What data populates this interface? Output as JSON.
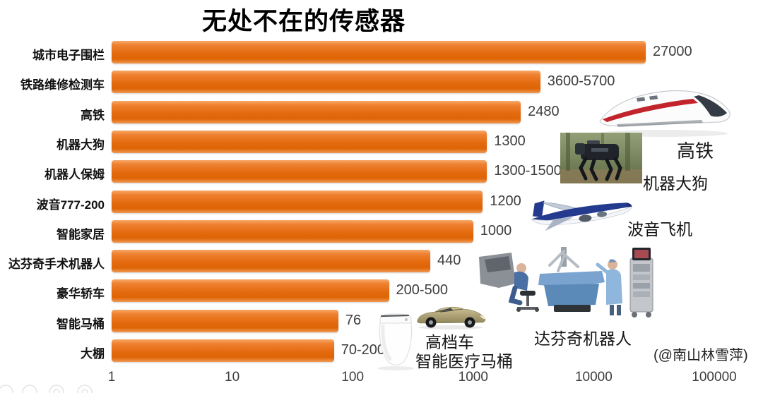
{
  "title": "无处不在的传感器",
  "attribution": "(@南山林雪萍)",
  "colors": {
    "bar_orange": "#e4690e",
    "bar_orange_light": "#f7a968",
    "text_dark": "#1a1a1a",
    "value_gray": "#3d3d3d"
  },
  "chart_data": {
    "type": "bar",
    "orientation": "horizontal",
    "title": "无处不在的传感器",
    "xlabel": "",
    "ylabel": "",
    "x_scale": "log10",
    "xlim": [
      1,
      100000
    ],
    "x_ticks": [
      "1",
      "10",
      "100",
      "1000",
      "10000",
      "100000"
    ],
    "grid": false,
    "legend": false,
    "bars": [
      {
        "category": "城市电子围栏",
        "label": "27000",
        "value": 27000
      },
      {
        "category": "铁路维修检测车",
        "label": "3600-5700",
        "value": 3600
      },
      {
        "category": "高铁",
        "label": "2480",
        "value": 2480
      },
      {
        "category": "机器大狗",
        "label": "1300",
        "value": 1300
      },
      {
        "category": "机器人保姆",
        "label": "1300-1500",
        "value": 1300
      },
      {
        "category": "波音777-200",
        "label": "1200",
        "value": 1200
      },
      {
        "category": "智能家居",
        "label": "1000",
        "value": 1000
      },
      {
        "category": "达芬奇手术机器人",
        "label": "440",
        "value": 440
      },
      {
        "category": "豪华轿车",
        "label": "200-500",
        "value": 200
      },
      {
        "category": "智能马桶",
        "label": "76",
        "value": 76
      },
      {
        "category": "大棚",
        "label": "70-200",
        "value": 70
      }
    ]
  },
  "illustrations": [
    {
      "name": "high-speed-train",
      "caption": "高铁"
    },
    {
      "name": "robot-dog",
      "caption": "机器大狗"
    },
    {
      "name": "boeing-plane",
      "caption": "波音飞机"
    },
    {
      "name": "davinci-robot",
      "caption": "达芬奇机器人"
    },
    {
      "name": "luxury-car",
      "caption": "高档车"
    },
    {
      "name": "smart-medical-toilet",
      "caption": "智能医疗马桶"
    }
  ]
}
